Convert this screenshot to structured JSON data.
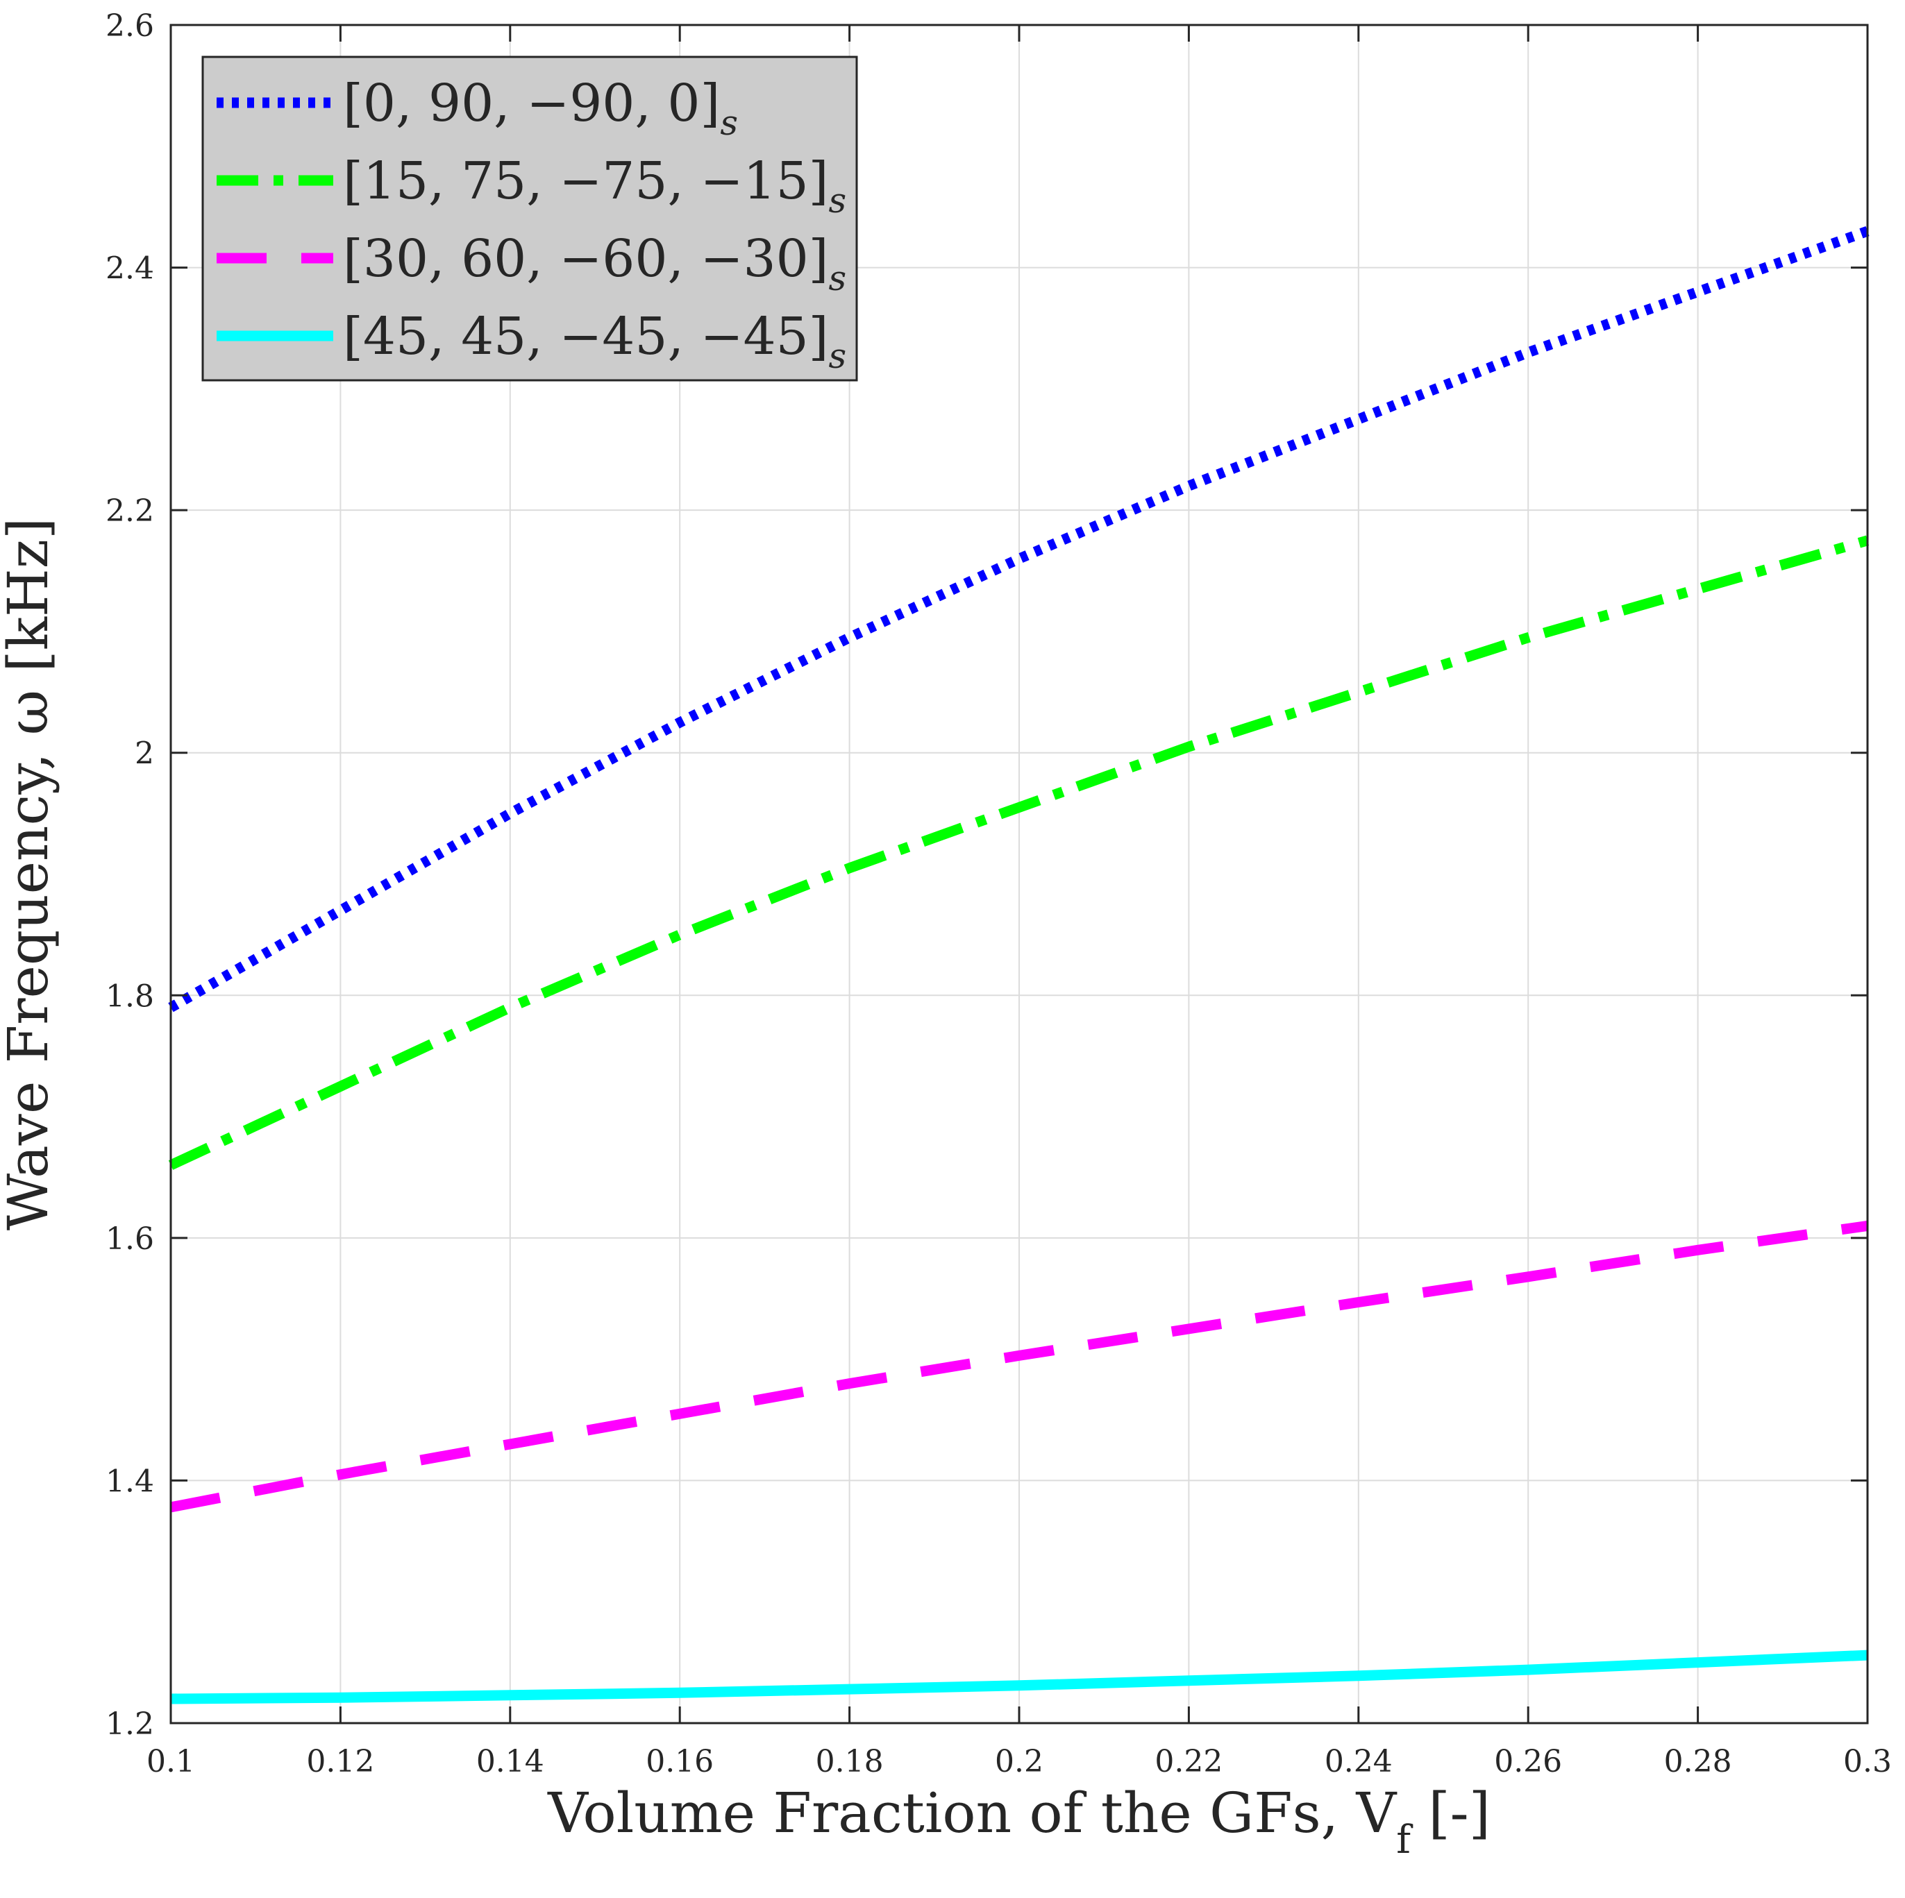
{
  "chart_data": {
    "type": "line",
    "title": "",
    "xlabel": "Volume Fraction of the GFs, V",
    "xlabel_subscript": "f",
    "xlabel_suffix": " [-]",
    "ylabel": "Wave Frequency, ω [kHz]",
    "xlim": [
      0.1,
      0.3
    ],
    "ylim": [
      1.2,
      2.6
    ],
    "xticks": [
      0.1,
      0.12,
      0.14,
      0.16,
      0.18,
      0.2,
      0.22,
      0.24,
      0.26,
      0.28,
      0.3
    ],
    "xtick_labels": [
      "0.1",
      "0.12",
      "0.14",
      "0.16",
      "0.18",
      "0.2",
      "0.22",
      "0.24",
      "0.26",
      "0.28",
      "0.3"
    ],
    "yticks": [
      1.2,
      1.4,
      1.6,
      1.8,
      2.0,
      2.2,
      2.4,
      2.6
    ],
    "ytick_labels": [
      "1.2",
      "1.4",
      "1.6",
      "1.8",
      "2",
      "2.2",
      "2.4",
      "2.6"
    ],
    "grid": true,
    "legend_position": "top-left",
    "series": [
      {
        "name": "[0, 90, −90, 0]",
        "subscript": "s",
        "color": "#0000ff",
        "style": "dotted",
        "x": [
          0.1,
          0.12,
          0.14,
          0.16,
          0.18,
          0.2,
          0.22,
          0.24,
          0.26,
          0.28,
          0.3
        ],
        "values": [
          1.79,
          1.87,
          1.95,
          2.025,
          2.095,
          2.16,
          2.22,
          2.275,
          2.33,
          2.38,
          2.43
        ]
      },
      {
        "name": "[15, 75, −75, −15]",
        "subscript": "s",
        "color": "#00ff00",
        "style": "dashdot",
        "x": [
          0.1,
          0.12,
          0.14,
          0.16,
          0.18,
          0.2,
          0.22,
          0.24,
          0.26,
          0.28,
          0.3
        ],
        "values": [
          1.66,
          1.725,
          1.79,
          1.85,
          1.905,
          1.955,
          2.005,
          2.05,
          2.095,
          2.135,
          2.175
        ]
      },
      {
        "name": "[30, 60, −60, −30]",
        "subscript": "s",
        "color": "#ff00ff",
        "style": "dashed",
        "x": [
          0.1,
          0.12,
          0.14,
          0.16,
          0.18,
          0.2,
          0.22,
          0.24,
          0.26,
          0.28,
          0.3
        ],
        "values": [
          1.378,
          1.405,
          1.43,
          1.455,
          1.48,
          1.503,
          1.525,
          1.547,
          1.568,
          1.59,
          1.61
        ]
      },
      {
        "name": "[45, 45, −45, −45]",
        "subscript": "s",
        "color": "#00ffff",
        "style": "solid",
        "x": [
          0.1,
          0.12,
          0.14,
          0.16,
          0.18,
          0.2,
          0.22,
          0.24,
          0.26,
          0.28,
          0.3
        ],
        "values": [
          1.22,
          1.221,
          1.223,
          1.225,
          1.228,
          1.231,
          1.235,
          1.239,
          1.244,
          1.25,
          1.256
        ]
      }
    ]
  }
}
